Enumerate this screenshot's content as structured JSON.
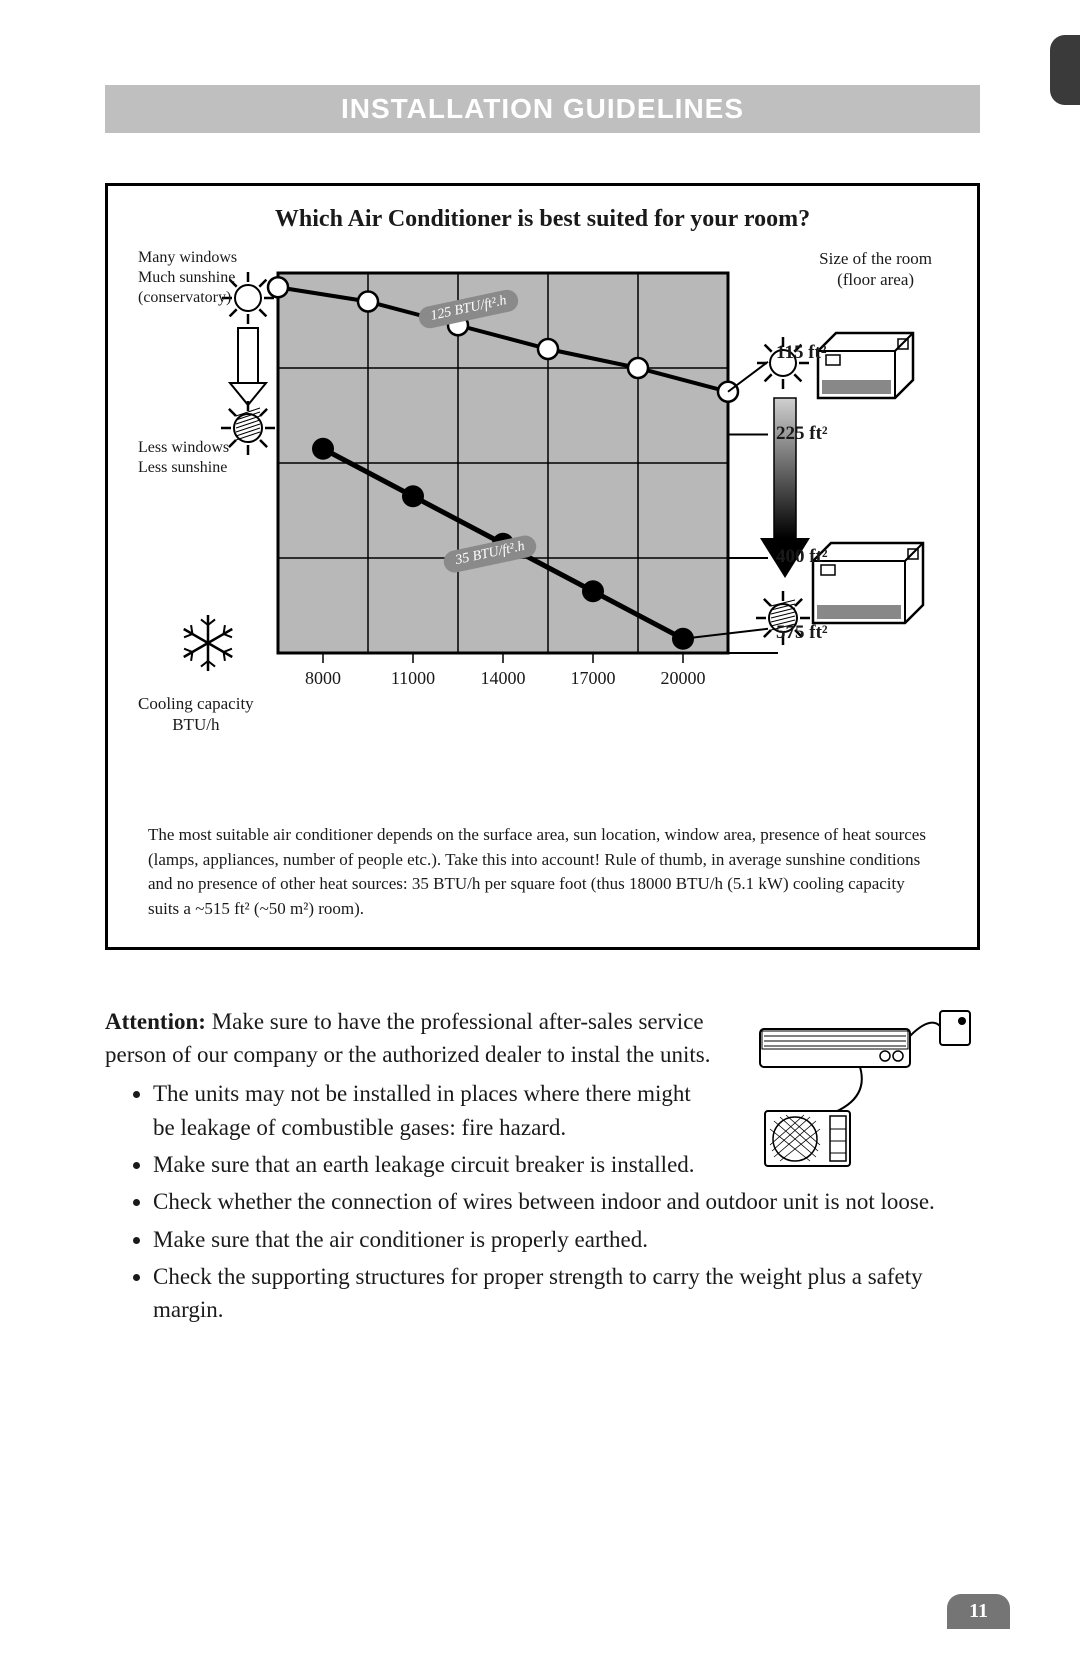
{
  "header": {
    "title": "INSTALLATION GUIDELINES"
  },
  "chart": {
    "title": "Which Air Conditioner is best suited for your room?",
    "left_top_label": "Many windows\nMuch sunshine\n(conservatory)",
    "left_mid_label": "Less windows\nLess sunshine",
    "cooling_cap_label": "Cooling capacity\nBTU/h",
    "right_top_label": "Size of the room\n(floor area)",
    "x_ticks": [
      "8000",
      "11000",
      "14000",
      "17000",
      "20000"
    ],
    "y_labels": [
      "115 ft²",
      "225 ft²",
      "400 ft²",
      "575 ft²"
    ],
    "badge_upper": "125 BTU/ft².h",
    "badge_lower": "35 BTU/ft².h",
    "grid": {
      "cols": 5,
      "rows": 4,
      "fill": "#b8b8b8",
      "grid_color": "#000000",
      "border_width": 3
    },
    "upper_line": {
      "points": [
        [
          0,
          0.15
        ],
        [
          1,
          0.3
        ],
        [
          2,
          0.55
        ],
        [
          3,
          0.8
        ],
        [
          4,
          1.0
        ],
        [
          5,
          1.25
        ]
      ],
      "marker_fill": "#ffffff",
      "stroke": "#000000"
    },
    "lower_line": {
      "points": [
        [
          0.5,
          1.85
        ],
        [
          1.5,
          2.35
        ],
        [
          2.5,
          2.85
        ],
        [
          3.5,
          3.35
        ],
        [
          4.5,
          3.85
        ]
      ],
      "marker_fill": "#000000",
      "stroke": "#000000"
    },
    "explain": "The most suitable air conditioner depends on the surface area, sun location, window area, presence of heat sources (lamps, appliances, number of people etc.). Take this into account! Rule of thumb, in average sunshine conditions and no presence of other heat sources: 35 BTU/h per square foot (thus 18000 BTU/h (5.1 kW) cooling capacity suits a ~515 ft² (~50 m²) room)."
  },
  "attention": {
    "heading": "Attention:",
    "intro": "Make sure to have the professional after-sales service person of our company or the authorized dealer to instal the units.",
    "bullets": [
      "The units may not be installed in places where there might be leakage of combustible gases: fire hazard.",
      "Make sure that an earth leakage circuit breaker is installed.",
      "Check whether the connection of wires between indoor and outdoor unit is not loose.",
      "Make sure that the air conditioner is properly earthed.",
      "Check the supporting structures for proper strength to carry the weight plus a safety margin."
    ]
  },
  "page_number": "11"
}
